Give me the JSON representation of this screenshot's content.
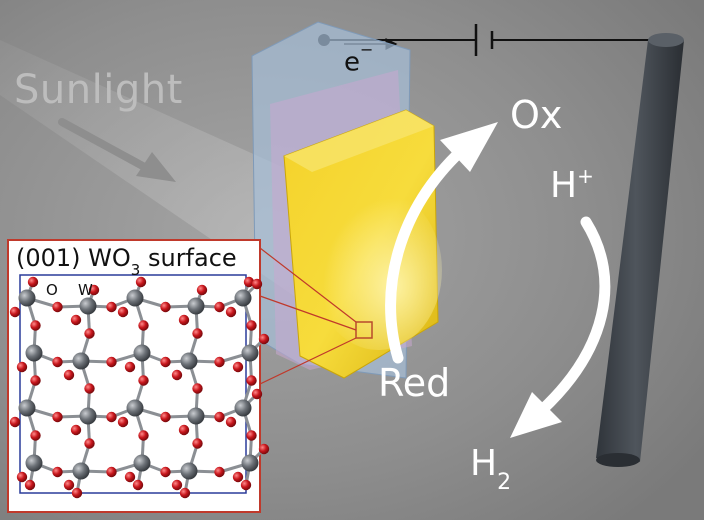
{
  "labels": {
    "sunlight": "Sunlight",
    "electron": "e",
    "electron_charge": "−",
    "ox": "Ox",
    "red": "Red",
    "h_plus": "H",
    "h_plus_charge": "+",
    "h2": "H",
    "h2_subscript": "2"
  },
  "inset": {
    "title_prefix": "(001) WO",
    "title_subscript": "3",
    "title_suffix": " surface",
    "atom_o": "O",
    "atom_w": "W"
  },
  "colors": {
    "background": "#8c8c8c",
    "photoanode": "#f2cf1c",
    "substrate": "#a6bfd9",
    "cathode": "#3c4147",
    "oxygen_atom": "#c0161b",
    "tungsten_atom": "#5d6268",
    "inset_border": "#c0392b",
    "cell_border": "#2a3c9a",
    "arrow": "#ffffff"
  }
}
